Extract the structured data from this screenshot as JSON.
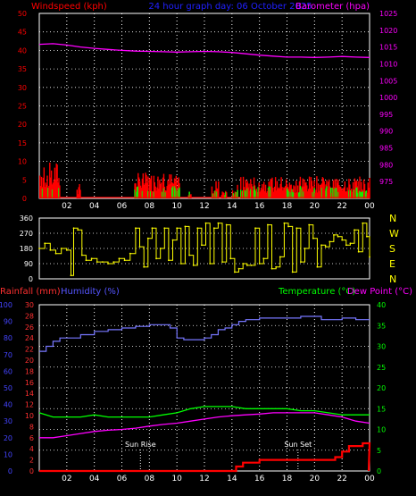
{
  "header": {
    "left_title": "Windspeed (kph)",
    "center_title": "24 hour graph day: 06 October 2025",
    "right_title": "Barometer (hpa)"
  },
  "colors": {
    "wind": "#ff0000",
    "gust_fill": "#00ff00",
    "barometer": "#ff00ff",
    "direction": "#ffff00",
    "rain": "#ff0000",
    "humidity": "#7777ff",
    "temperature": "#00ff00",
    "dewpoint": "#ff00ff",
    "rain_axis": "#ff3030",
    "humidity_axis": "#4444ff",
    "temp_axis": "#00ff00",
    "dew_axis": "#ff00ff",
    "frame": "#ffffff",
    "grid": "#ffffff"
  },
  "chart_data": [
    {
      "type": "line",
      "name": "wind-barometer",
      "left_axis": {
        "label": "Windspeed (kph)",
        "range": [
          0,
          50
        ],
        "ticks": [
          0,
          5,
          10,
          15,
          20,
          25,
          30,
          35,
          40,
          45,
          50
        ]
      },
      "right_axis": {
        "label": "Barometer (hpa)",
        "range": [
          970,
          1025
        ],
        "ticks": [
          975,
          980,
          985,
          990,
          995,
          1000,
          1005,
          1010,
          1015,
          1020,
          1025
        ]
      },
      "x_ticks": [
        "02",
        "04",
        "06",
        "08",
        "10",
        "12",
        "14",
        "16",
        "18",
        "20",
        "22",
        "00"
      ],
      "x_range_hours": [
        0,
        24
      ],
      "wind_bursts": [
        {
          "start": 0.0,
          "end": 1.5,
          "peak": 10
        },
        {
          "start": 2.7,
          "end": 3.0,
          "peak": 4
        },
        {
          "start": 6.9,
          "end": 10.2,
          "peak": 7
        },
        {
          "start": 10.8,
          "end": 11.0,
          "peak": 3
        },
        {
          "start": 12.5,
          "end": 13.0,
          "peak": 5
        },
        {
          "start": 13.2,
          "end": 13.6,
          "peak": 3
        },
        {
          "start": 14.0,
          "end": 14.4,
          "peak": 4
        },
        {
          "start": 14.6,
          "end": 24.0,
          "peak": 6
        }
      ],
      "barometer": {
        "x": [
          0,
          1,
          2,
          3,
          4,
          5,
          6,
          7,
          8,
          9,
          10,
          11,
          12,
          13,
          14,
          15,
          16,
          17,
          18,
          19,
          20,
          21,
          22,
          23,
          24
        ],
        "y": [
          1015.8,
          1016.0,
          1015.6,
          1015.0,
          1014.6,
          1014.3,
          1014.0,
          1013.8,
          1013.7,
          1013.6,
          1013.5,
          1013.6,
          1013.7,
          1013.6,
          1013.4,
          1013.0,
          1012.6,
          1012.3,
          1012.0,
          1012.0,
          1011.9,
          1012.0,
          1012.2,
          1012.0,
          1011.9
        ]
      }
    },
    {
      "type": "scatter",
      "name": "wind-direction",
      "left_axis": {
        "range": [
          0,
          360
        ],
        "ticks": [
          0,
          90,
          180,
          270,
          360
        ]
      },
      "right_labels": [
        "N",
        "W",
        "S",
        "E",
        "N"
      ],
      "x_range_hours": [
        0,
        24
      ],
      "x": [
        0.0,
        0.4,
        0.8,
        1.2,
        1.6,
        2.0,
        2.3,
        2.5,
        2.8,
        3.1,
        3.4,
        3.8,
        4.2,
        4.6,
        5.0,
        5.4,
        5.8,
        6.2,
        6.6,
        7.0,
        7.3,
        7.6,
        7.9,
        8.2,
        8.5,
        8.8,
        9.1,
        9.4,
        9.7,
        10.0,
        10.3,
        10.6,
        10.9,
        11.2,
        11.5,
        11.8,
        12.1,
        12.4,
        12.7,
        13.0,
        13.3,
        13.6,
        13.9,
        14.2,
        14.5,
        14.8,
        15.1,
        15.4,
        15.7,
        16.0,
        16.3,
        16.6,
        16.9,
        17.2,
        17.5,
        17.8,
        18.1,
        18.4,
        18.7,
        19.0,
        19.3,
        19.6,
        19.9,
        20.2,
        20.5,
        20.8,
        21.1,
        21.4,
        21.7,
        22.0,
        22.3,
        22.6,
        22.9,
        23.2,
        23.5,
        23.8,
        24.0
      ],
      "y": [
        180,
        210,
        170,
        150,
        180,
        170,
        20,
        300,
        290,
        140,
        110,
        120,
        100,
        100,
        90,
        100,
        120,
        110,
        150,
        300,
        190,
        70,
        240,
        300,
        120,
        180,
        300,
        110,
        230,
        300,
        90,
        310,
        140,
        80,
        300,
        200,
        330,
        90,
        300,
        330,
        100,
        320,
        120,
        40,
        60,
        90,
        80,
        80,
        300,
        90,
        120,
        320,
        60,
        70,
        130,
        330,
        310,
        40,
        300,
        100,
        180,
        320,
        240,
        70,
        200,
        190,
        220,
        260,
        250,
        230,
        200,
        210,
        290,
        160,
        330,
        250,
        130
      ]
    },
    {
      "type": "line",
      "name": "rain-humidity-temperature",
      "left_labels": [
        "Rainfall (mm)",
        "Humidity (%)"
      ],
      "right_labels": [
        "Temperature (°C)",
        "Dew Point (°C)"
      ],
      "rain_axis": {
        "range": [
          0,
          30
        ],
        "ticks": [
          0,
          2,
          4,
          6,
          8,
          10,
          12,
          14,
          16,
          18,
          20,
          22,
          24,
          26,
          28,
          30
        ]
      },
      "humidity_axis": {
        "range": [
          0,
          100
        ],
        "ticks": [
          0,
          10,
          20,
          30,
          40,
          50,
          60,
          70,
          80,
          90,
          100
        ]
      },
      "temp_axis": {
        "range": [
          0,
          40
        ],
        "ticks": [
          0,
          5,
          10,
          15,
          20,
          25,
          30,
          35,
          40
        ]
      },
      "x_ticks": [
        "02",
        "04",
        "06",
        "08",
        "10",
        "12",
        "14",
        "16",
        "18",
        "20",
        "22",
        "00"
      ],
      "x_range_hours": [
        0,
        24
      ],
      "annotations": [
        {
          "label": "Sun Rise",
          "x": 7.35
        },
        {
          "label": "Sun Set",
          "x": 18.8
        }
      ],
      "humidity": {
        "x": [
          0,
          0.5,
          1,
          1.5,
          2,
          3,
          4,
          5,
          6,
          7,
          8,
          9,
          9.5,
          10,
          10.5,
          11,
          11.5,
          12,
          12.5,
          13,
          13.5,
          14,
          14.5,
          15,
          16,
          17,
          18,
          19,
          20,
          20.5,
          21,
          22,
          23,
          24
        ],
        "y": [
          72,
          75,
          78,
          80,
          80,
          82,
          84,
          85,
          86,
          87,
          88,
          88,
          86,
          80,
          79,
          79,
          79,
          80,
          82,
          85,
          86,
          88,
          90,
          91,
          92,
          92,
          92,
          93,
          93,
          91,
          91,
          92,
          91,
          91
        ]
      },
      "temperature": {
        "x": [
          0,
          1,
          2,
          3,
          4,
          5,
          6,
          7,
          8,
          9,
          10,
          11,
          12,
          13,
          14,
          15,
          16,
          17,
          18,
          19,
          20,
          21,
          22,
          23,
          24
        ],
        "y": [
          14.0,
          13.0,
          13.0,
          13.0,
          13.5,
          13.0,
          13.0,
          13.0,
          13.0,
          13.5,
          14.0,
          15.0,
          15.5,
          15.5,
          15.5,
          15.0,
          15.0,
          15.0,
          15.0,
          14.5,
          14.5,
          14.0,
          13.5,
          13.5,
          13.5
        ]
      },
      "dewpoint": {
        "x": [
          0,
          1,
          2,
          3,
          4,
          5,
          6,
          7,
          8,
          9,
          10,
          11,
          12,
          13,
          14,
          15,
          16,
          17,
          18,
          19,
          20,
          21,
          22,
          23,
          24
        ],
        "y": [
          8.0,
          8.0,
          8.5,
          9.0,
          9.5,
          9.8,
          10.0,
          10.3,
          10.8,
          11.2,
          11.5,
          12.0,
          12.5,
          13.0,
          13.3,
          13.5,
          13.7,
          14.0,
          14.0,
          14.0,
          14.0,
          13.5,
          13.0,
          12.0,
          11.5
        ]
      },
      "rain": {
        "x": [
          0,
          13.8,
          14.3,
          14.8,
          15.5,
          16.0,
          18.0,
          19.0,
          20.0,
          21.0,
          21.5,
          22.0,
          22.5,
          23.0,
          23.5,
          24.0
        ],
        "y": [
          0,
          0,
          0.8,
          1.5,
          1.5,
          2.0,
          2.0,
          2.0,
          2.0,
          2.0,
          2.5,
          3.5,
          4.5,
          4.5,
          5.0,
          5.0
        ]
      }
    }
  ]
}
